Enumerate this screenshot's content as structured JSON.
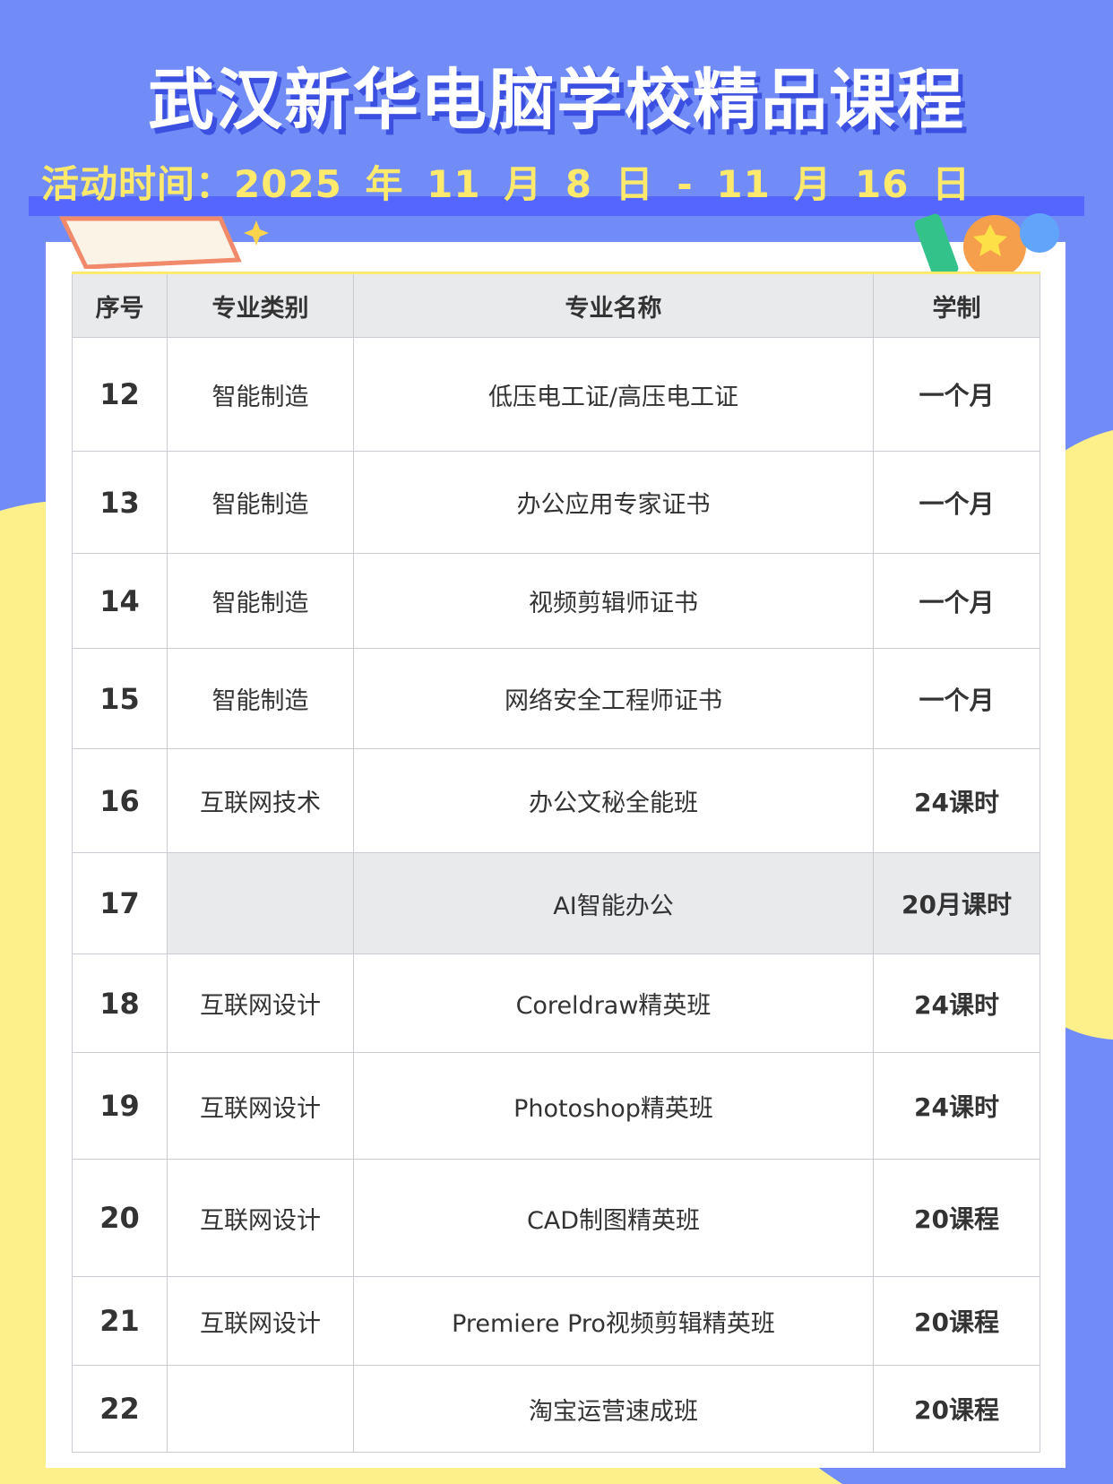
{
  "title": "武汉新华电脑学校精品课程",
  "date_line": "活动时间：2025 年 11 月 8 日 - 11 月 16 日",
  "colors": {
    "background": "#728cf7",
    "accent_yellow": "#fde96b",
    "band": "#5566ff"
  },
  "table": {
    "headers": [
      "序号",
      "专业类别",
      "专业名称",
      "学制"
    ],
    "rows": [
      {
        "no": "12",
        "category": "智能制造",
        "name": "低压电工证/高压电工证",
        "duration": "一个月"
      },
      {
        "no": "13",
        "category": "智能制造",
        "name": "办公应用专家证书",
        "duration": "一个月"
      },
      {
        "no": "14",
        "category": "智能制造",
        "name": "视频剪辑师证书",
        "duration": "一个月"
      },
      {
        "no": "15",
        "category": "智能制造",
        "name": "网络安全工程师证书",
        "duration": "一个月"
      },
      {
        "no": "16",
        "category": "互联网技术",
        "name": "办公文秘全能班",
        "duration": "24课时"
      },
      {
        "no": "17",
        "category": "",
        "name": "AI智能办公",
        "duration": "20月课时"
      },
      {
        "no": "18",
        "category": "互联网设计",
        "name": "Coreldraw精英班",
        "duration": "24课时"
      },
      {
        "no": "19",
        "category": "互联网设计",
        "name": "Photoshop精英班",
        "duration": "24课时"
      },
      {
        "no": "20",
        "category": "互联网设计",
        "name": "CAD制图精英班",
        "duration": "20课程"
      },
      {
        "no": "21",
        "category": "互联网设计",
        "name": "Premiere Pro视频剪辑精英班",
        "duration": "20课程"
      },
      {
        "no": "22",
        "category": "",
        "name": "淘宝运营速成班",
        "duration": "20课程"
      }
    ]
  }
}
